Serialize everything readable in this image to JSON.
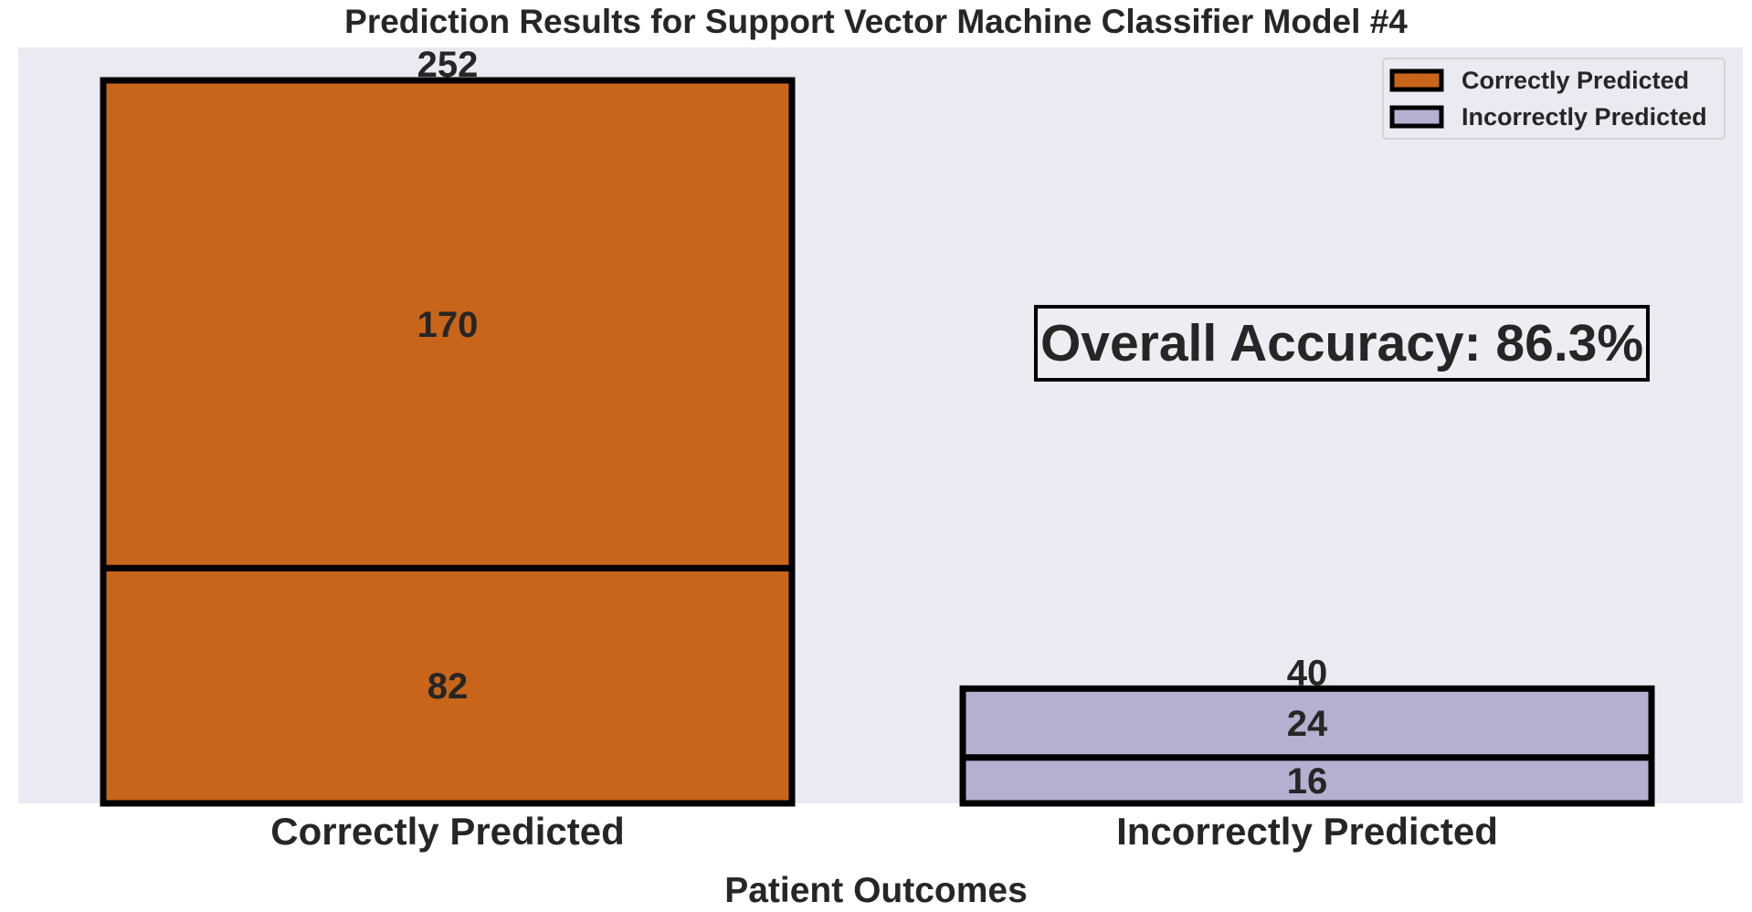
{
  "chart_data": {
    "type": "bar",
    "stacked": true,
    "title": "Prediction Results for Support Vector Machine Classifier Model #4",
    "xlabel": "Patient Outcomes",
    "ylabel": "",
    "ylim": [
      0,
      252
    ],
    "grid": false,
    "legend_placement": "top-right",
    "background_color": "#eaeaf2",
    "edge_color": "#000000",
    "categories": [
      "Correctly Predicted",
      "Incorrectly Predicted"
    ],
    "bars": [
      {
        "category": "Correctly Predicted",
        "color": "#c8651b",
        "segments": [
          82,
          170
        ],
        "total": 252
      },
      {
        "category": "Incorrectly Predicted",
        "color": "#b5b0cf",
        "segments": [
          16,
          24
        ],
        "total": 40
      }
    ],
    "legend": [
      {
        "label": "Correctly Predicted",
        "color": "#c8651b"
      },
      {
        "label": "Incorrectly Predicted",
        "color": "#b5b0cf"
      }
    ],
    "annotation": "Overall Accuracy: 86.3%"
  }
}
